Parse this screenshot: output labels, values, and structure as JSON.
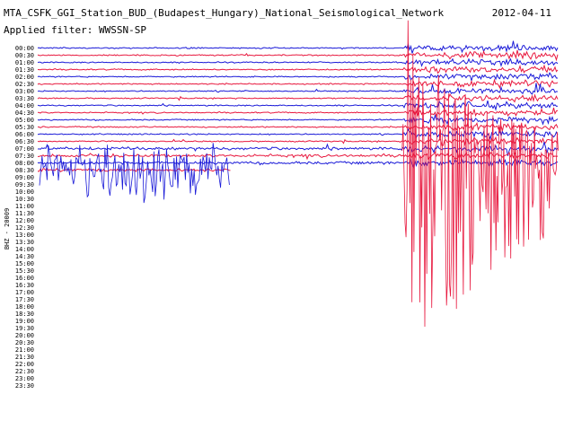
{
  "header": {
    "title": "MTA_CSFK_GGI_Station_BUD_(Budapest_Hungary)_National_Seismological_Network",
    "date": "2012-04-11",
    "filter": "Applied filter: WWSSN-SP"
  },
  "chart_data": {
    "type": "line",
    "station_label": "BHZ - 20009",
    "rows": [
      "00:00",
      "00:30",
      "01:00",
      "01:30",
      "02:00",
      "02:30",
      "03:00",
      "03:30",
      "04:00",
      "04:30",
      "05:00",
      "05:30",
      "06:00",
      "06:30",
      "07:00",
      "07:30",
      "08:00",
      "08:30",
      "09:00",
      "09:30",
      "10:00",
      "10:30",
      "11:00",
      "11:30",
      "12:00",
      "12:30",
      "13:00",
      "13:30",
      "14:00",
      "14:30",
      "15:00",
      "15:30",
      "16:00",
      "16:30",
      "17:00",
      "17:30",
      "18:00",
      "18:30",
      "19:00",
      "19:30",
      "20:00",
      "20:30",
      "21:00",
      "21:30",
      "22:00",
      "22:30",
      "23:00",
      "23:30"
    ],
    "colors": {
      "blue": "#1a1ad8",
      "red": "#e8193f"
    },
    "color_cycle": [
      "blue",
      "red"
    ],
    "recorded_rows": 18,
    "last_row_end_fraction": 0.37,
    "event_onset_fraction": 0.703,
    "grid": false
  }
}
